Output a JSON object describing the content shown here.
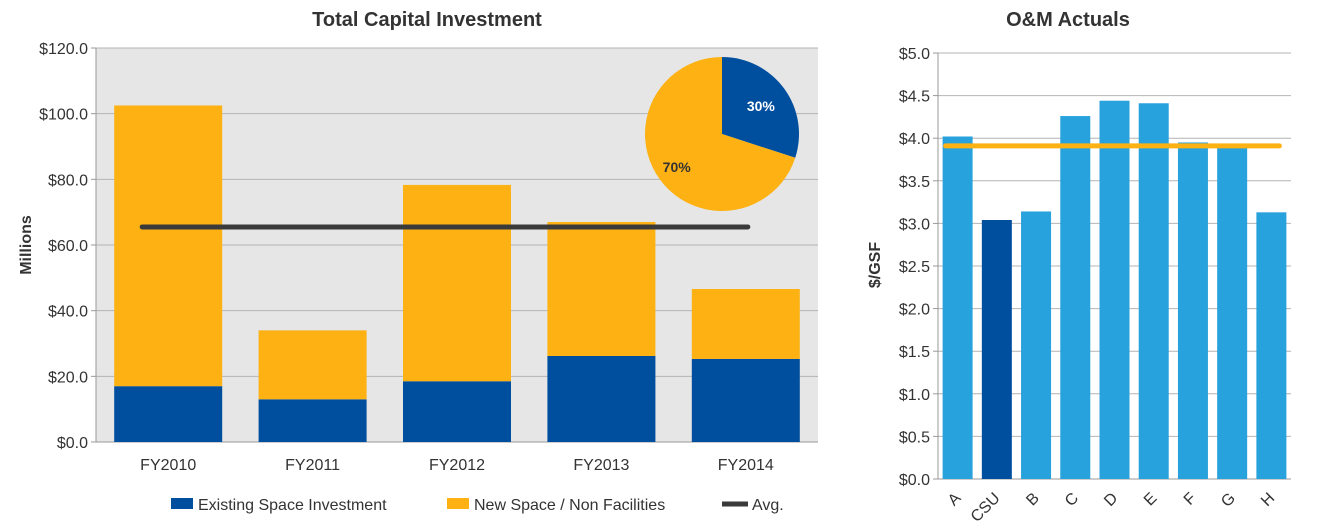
{
  "colors": {
    "existing": "#004f9e",
    "new_space": "#fdb113",
    "avg": "#3a3a3a",
    "om_bar": "#28a2dc",
    "om_csu": "#004f9e",
    "om_avg": "#fdb113",
    "plot_bg": "#e6e6e6",
    "grid": "#b4b4b4"
  },
  "chart_data": [
    {
      "type": "bar",
      "stacked": true,
      "title": "Total Capital Investment",
      "xlabel": "",
      "ylabel": "Millions",
      "ylim": [
        0,
        120
      ],
      "yticks": [
        "$0.0",
        "$20.0",
        "$40.0",
        "$60.0",
        "$80.0",
        "$100.0",
        "$120.0"
      ],
      "ytick_values": [
        0,
        20,
        40,
        60,
        80,
        100,
        120
      ],
      "categories": [
        "FY2010",
        "FY2011",
        "FY2012",
        "FY2013",
        "FY2014"
      ],
      "series": [
        {
          "name": "Existing Space Investment",
          "values": [
            17,
            13,
            18.5,
            26.2,
            25.3
          ]
        },
        {
          "name": "New Space / Non Facilities",
          "values": [
            85.5,
            21,
            59.8,
            40.8,
            21.3
          ]
        }
      ],
      "avg": {
        "name": "Avg.",
        "value": 65.5
      },
      "legend": [
        "Existing Space Investment",
        "New Space / Non Facilities",
        "Avg."
      ],
      "legend_position": "bottom",
      "inset_pie": {
        "type": "pie",
        "labels": [
          "Existing Space Investment",
          "New Space / Non Facilities"
        ],
        "values": [
          30,
          70
        ],
        "value_labels": [
          "30%",
          "70%"
        ]
      }
    },
    {
      "type": "bar",
      "title": "O&M Actuals",
      "xlabel": "",
      "ylabel": "$/GSF",
      "ylim": [
        0,
        5
      ],
      "yticks": [
        "$0.0",
        "$0.5",
        "$1.0",
        "$1.5",
        "$2.0",
        "$2.5",
        "$3.0",
        "$3.5",
        "$4.0",
        "$4.5",
        "$5.0"
      ],
      "ytick_values": [
        0,
        0.5,
        1,
        1.5,
        2,
        2.5,
        3,
        3.5,
        4,
        4.5,
        5
      ],
      "categories": [
        "A",
        "CSU",
        "B",
        "C",
        "D",
        "E",
        "F",
        "G",
        "H"
      ],
      "values": [
        4.02,
        3.04,
        3.14,
        4.26,
        4.44,
        4.41,
        3.95,
        3.91,
        3.13
      ],
      "highlight": "CSU",
      "avg_line": 3.91
    }
  ]
}
